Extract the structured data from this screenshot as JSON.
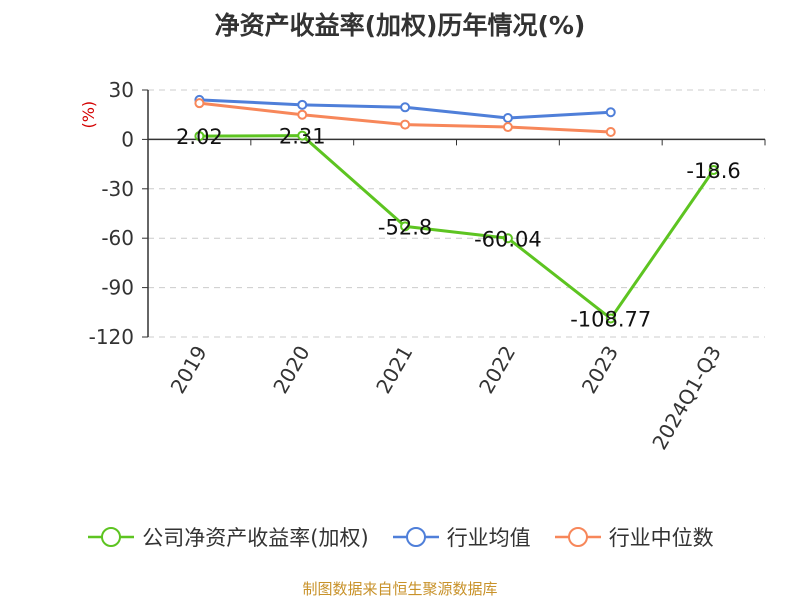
{
  "chart_data": {
    "type": "line",
    "title": "净资产收益率(加权)历年情况(%)",
    "ylabel": "(%)",
    "xlabel": "",
    "categories": [
      "2019",
      "2020",
      "2021",
      "2022",
      "2023",
      "2024Q1-Q3"
    ],
    "ylim": [
      -120,
      30
    ],
    "yticks": [
      30,
      0,
      -30,
      -60,
      -90,
      -120
    ],
    "grid": true,
    "legend_position": "bottom",
    "series": [
      {
        "name": "公司净资产收益率(加权)",
        "color": "#5dc421",
        "values": [
          2.02,
          2.31,
          -52.8,
          -60.04,
          -108.77,
          -18.6
        ],
        "labels": [
          "2.02",
          "2.31",
          "-52.8",
          "-60.04",
          "-108.77",
          "-18.6"
        ]
      },
      {
        "name": "行业均值",
        "color": "#4f7fd9",
        "values": [
          24,
          21,
          19.5,
          13,
          16.5,
          null
        ]
      },
      {
        "name": "行业中位数",
        "color": "#f7875a",
        "values": [
          22,
          15,
          9,
          7.5,
          4.5,
          null
        ]
      }
    ]
  },
  "source": "制图数据来自恒生聚源数据库"
}
